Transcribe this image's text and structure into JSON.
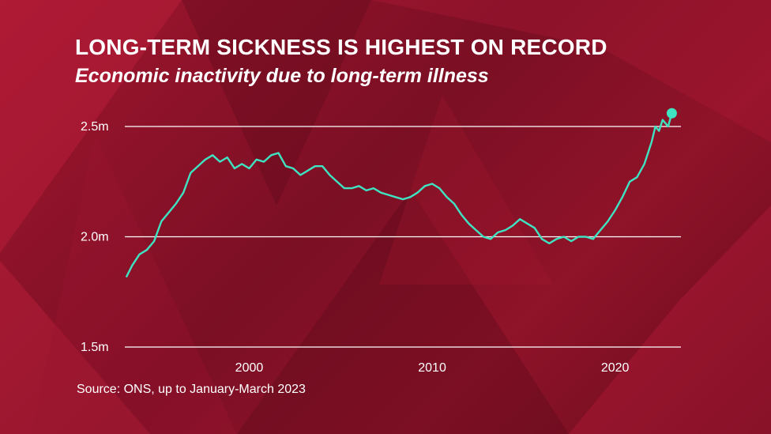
{
  "title": "LONG-TERM SICKNESS IS HIGHEST ON RECORD",
  "subtitle": "Economic inactivity due to long-term illness",
  "source": "Source: ONS, up to January-March 2023",
  "colors": {
    "line": "#3fe3c2",
    "grid": "#ffffff",
    "background": "#8f1329"
  },
  "chart_data": {
    "type": "line",
    "title": "LONG-TERM SICKNESS IS HIGHEST ON RECORD",
    "subtitle": "Economic inactivity due to long-term illness",
    "xlim": [
      1993.2,
      2023.6
    ],
    "ylim": [
      1500000,
      2500000
    ],
    "y_ticks": [
      {
        "value": 2500000,
        "label": "2.5m"
      },
      {
        "value": 2000000,
        "label": "2.0m"
      },
      {
        "value": 1500000,
        "label": "1.5m"
      }
    ],
    "x_ticks": [
      {
        "value": 2000,
        "label": "2000"
      },
      {
        "value": 2010,
        "label": "2010"
      },
      {
        "value": 2020,
        "label": "2020"
      }
    ],
    "grid": "horizontal",
    "x": [
      1993.3,
      1993.6,
      1994.0,
      1994.4,
      1994.8,
      1995.2,
      1995.6,
      1996.0,
      1996.4,
      1996.8,
      1997.2,
      1997.6,
      1998.0,
      1998.4,
      1998.8,
      1999.2,
      1999.6,
      2000.0,
      2000.4,
      2000.8,
      2001.2,
      2001.6,
      2002.0,
      2002.4,
      2002.8,
      2003.2,
      2003.6,
      2004.0,
      2004.4,
      2004.8,
      2005.2,
      2005.6,
      2006.0,
      2006.4,
      2006.8,
      2007.2,
      2007.6,
      2008.0,
      2008.4,
      2008.8,
      2009.2,
      2009.6,
      2010.0,
      2010.4,
      2010.8,
      2011.2,
      2011.6,
      2012.0,
      2012.4,
      2012.8,
      2013.2,
      2013.6,
      2014.0,
      2014.4,
      2014.8,
      2015.2,
      2015.6,
      2016.0,
      2016.4,
      2016.8,
      2017.2,
      2017.6,
      2018.0,
      2018.4,
      2018.8,
      2019.2,
      2019.6,
      2020.0,
      2020.4,
      2020.8,
      2021.2,
      2021.6,
      2022.0,
      2022.2,
      2022.4,
      2022.6,
      2022.9,
      2023.1
    ],
    "series": [
      {
        "values": [
          1820000,
          1870000,
          1920000,
          1940000,
          1980000,
          2070000,
          2110000,
          2150000,
          2200000,
          2290000,
          2320000,
          2350000,
          2370000,
          2340000,
          2360000,
          2310000,
          2330000,
          2310000,
          2350000,
          2340000,
          2370000,
          2380000,
          2320000,
          2310000,
          2280000,
          2300000,
          2320000,
          2320000,
          2280000,
          2250000,
          2220000,
          2220000,
          2230000,
          2210000,
          2220000,
          2200000,
          2190000,
          2180000,
          2170000,
          2180000,
          2200000,
          2230000,
          2240000,
          2220000,
          2180000,
          2150000,
          2100000,
          2060000,
          2030000,
          2000000,
          1990000,
          2020000,
          2030000,
          2050000,
          2080000,
          2060000,
          2040000,
          1990000,
          1970000,
          1990000,
          2000000,
          1980000,
          2000000,
          2000000,
          1990000,
          2030000,
          2070000,
          2120000,
          2180000,
          2250000,
          2270000,
          2330000,
          2430000,
          2500000,
          2480000,
          2530000,
          2500000,
          2560000
        ]
      }
    ],
    "endpoint_marker": {
      "x": 2023.1,
      "value": 2560000
    }
  }
}
